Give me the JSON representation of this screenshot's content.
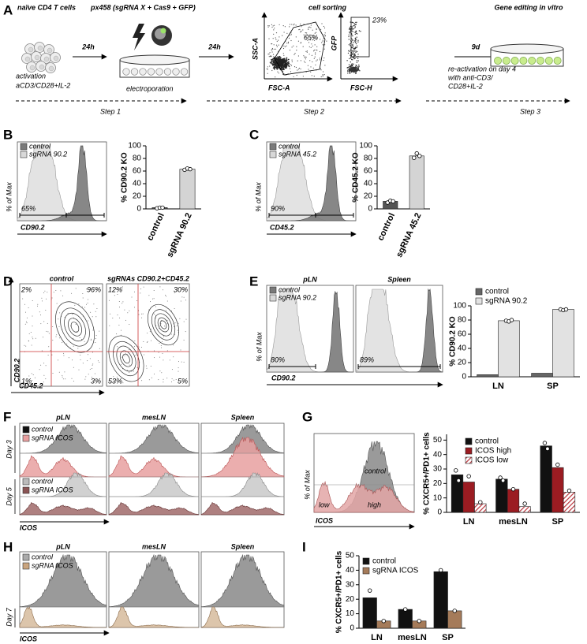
{
  "figure": {
    "panel_labels": [
      "A",
      "B",
      "C",
      "D",
      "E",
      "F",
      "G",
      "H",
      "I"
    ],
    "a": {
      "titles": [
        "naïve CD4 T cells",
        "px458 (sgRNA X + Cas9 + GFP)",
        "cell sorting",
        "Gene editing in vitro"
      ],
      "times": [
        "24h",
        "24h",
        "9d"
      ],
      "activation": [
        "activation",
        "aCD3/CD28+IL-2"
      ],
      "electroporation": "electroporation",
      "sort_plots": [
        {
          "ylabel": "SSC-A",
          "xlabel": "FSC-A",
          "gate": "65%"
        },
        {
          "ylabel": "GFP",
          "xlabel": "FSC-H",
          "gate": "23%"
        }
      ],
      "reactivation": [
        "re-activation on day 4",
        "with anti-CD3/",
        "CD28+IL-2"
      ],
      "steps": [
        "Step 1",
        "Step 2",
        "Step 3"
      ]
    },
    "b": {
      "legend": [
        "control",
        "sgRNA 90.2"
      ],
      "gate": "65%",
      "ylabel": "% of Max",
      "xlabel": "CD90.2"
    },
    "c": {
      "legend": [
        "control",
        "sgRNA 45.2"
      ],
      "gate": "90%",
      "ylabel": "% of Max",
      "xlabel": "CD45.2"
    },
    "d": {
      "titles": [
        "control",
        "sgRNAs CD90.2+CD45.2"
      ],
      "quadrants": [
        [
          "2%",
          "96%",
          "1%",
          "3%"
        ],
        [
          "12%",
          "30%",
          "53%",
          "5%"
        ]
      ],
      "ylabel": "CD90.2",
      "xlabel": "CD45.2"
    },
    "e": {
      "titles": [
        "pLN",
        "Spleen"
      ],
      "legend": [
        "control",
        "sgRNA 90.2"
      ],
      "gates": [
        "80%",
        "89%"
      ],
      "ylabel": "% of Max",
      "xlabel": "CD90.2"
    },
    "f": {
      "titles": [
        "pLN",
        "mesLN",
        "Spleen"
      ],
      "legend_day3": [
        "control",
        "sgRNA ICOS"
      ],
      "legend_day5": [
        "control",
        "sgRNA ICOS"
      ],
      "days": [
        "Day 3",
        "Day 5"
      ],
      "xlabel": "ICOS"
    },
    "g": {
      "annotations": [
        "control",
        "low",
        "high"
      ],
      "ylabel": "% of Max",
      "xlabel": "ICOS"
    },
    "h": {
      "titles": [
        "pLN",
        "mesLN",
        "Spleen"
      ],
      "legend": [
        "control",
        "sgRNA ICOS"
      ],
      "day": "Day 7",
      "xlabel": "ICOS"
    }
  },
  "chart_data": [
    {
      "type": "bar",
      "ylabel": "% CD90.2 KO",
      "categories": [
        "control",
        "sgRNA 90.2"
      ],
      "values": [
        2,
        63
      ],
      "colors": [
        "#555555",
        "#d4d4d4"
      ],
      "points": [
        [
          1,
          2,
          2
        ],
        [
          62,
          64,
          63
        ]
      ],
      "ylim": [
        0,
        100
      ],
      "yticks": [
        0,
        20,
        40,
        60,
        80,
        100
      ]
    },
    {
      "type": "bar",
      "ylabel": "% CD45.2 KO",
      "categories": [
        "control",
        "sgRNA 45.2"
      ],
      "values": [
        12,
        84
      ],
      "colors": [
        "#555555",
        "#d4d4d4"
      ],
      "points": [
        [
          10,
          13,
          12
        ],
        [
          81,
          88,
          84
        ]
      ],
      "ylim": [
        0,
        100
      ],
      "yticks": [
        0,
        20,
        40,
        60,
        80,
        100
      ]
    },
    {
      "type": "bar",
      "ylabel": "% CD90.2 KO",
      "categories": [
        "LN",
        "SP"
      ],
      "ylim": [
        0,
        100
      ],
      "yticks": [
        0,
        20,
        40,
        60,
        80,
        100
      ],
      "series": [
        {
          "name": "control",
          "color": "#666666",
          "values": [
            3,
            5
          ]
        },
        {
          "name": "sgRNA 90.2",
          "color": "#e2e2e2",
          "values": [
            79,
            95
          ],
          "points": [
            [
              79,
              78,
              80
            ],
            [
              95,
              94,
              95
            ]
          ]
        }
      ]
    },
    {
      "type": "bar",
      "ylabel": "% CXCR5+/PD1+ cells",
      "categories": [
        "LN",
        "mesLN",
        "SP"
      ],
      "ylim": [
        0,
        54
      ],
      "yticks": [
        0,
        10,
        20,
        30,
        40,
        50
      ],
      "series": [
        {
          "name": "control",
          "color": "#111111",
          "values": [
            26,
            23,
            46
          ],
          "points": [
            [
              29,
              22
            ],
            [
              24,
              22
            ],
            [
              48,
              44
            ]
          ]
        },
        {
          "name": "ICOS high",
          "color": "#9b1c22",
          "values": [
            21,
            16,
            31
          ],
          "points": [
            [
              25
            ],
            [
              16
            ],
            [
              33
            ]
          ]
        },
        {
          "name": "ICOS low",
          "color": "#b8333b",
          "hatch": true,
          "values": [
            6,
            4,
            14
          ],
          "points": [
            [
              7
            ],
            [
              6
            ],
            [
              15
            ]
          ]
        }
      ]
    },
    {
      "type": "bar",
      "ylabel": "% CXCR5+/PD1+ cells",
      "categories": [
        "LN",
        "mesLN",
        "SP"
      ],
      "ylim": [
        0,
        50
      ],
      "yticks": [
        0,
        10,
        20,
        30,
        40,
        50
      ],
      "series": [
        {
          "name": "control",
          "color": "#111111",
          "values": [
            21,
            13,
            39
          ],
          "points": [
            [
              26
            ],
            [
              13
            ],
            [
              40
            ]
          ]
        },
        {
          "name": "sgRNA ICOS",
          "color": "#a57b5a",
          "values": [
            5,
            5,
            12
          ],
          "points": [
            [
              5
            ],
            [
              5
            ],
            [
              12
            ]
          ]
        }
      ]
    }
  ]
}
